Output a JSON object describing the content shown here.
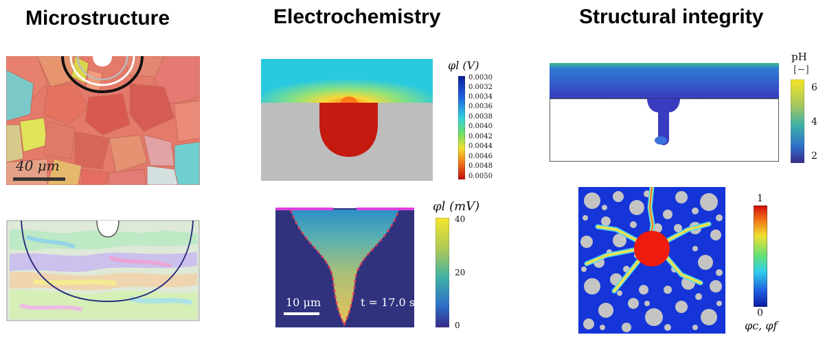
{
  "headings": {
    "col1": "Microstructure",
    "col2": "Electrochemistry",
    "col3": "Structural integrity"
  },
  "micro_top": {
    "scalebar": "40 μm"
  },
  "echem_top": {
    "colorbar_title": "φl (V)",
    "ticks": [
      "0.0030",
      "0.0032",
      "0.0034",
      "0.0036",
      "0.0038",
      "0.0040",
      "0.0042",
      "0.0044",
      "0.0046",
      "0.0048",
      "0.0050"
    ]
  },
  "echem_bottom": {
    "colorbar_title": "φl (mV)",
    "ticks": [
      "40",
      "20",
      "0"
    ],
    "scalebar": "10 μm",
    "time": "t = 17.0 s"
  },
  "struct_top": {
    "colorbar_title": "pH",
    "colorbar_unit": "[−]",
    "ticks": [
      "6",
      "4",
      "2"
    ]
  },
  "struct_bottom": {
    "ticks": [
      "1",
      "0"
    ],
    "colorbar_label": "φc, φf"
  },
  "colors": {
    "liquid_blue": "#30327e",
    "pit_red": "#c41a10",
    "metal_grey": "#bdbdbd",
    "mesh_blue": "#1535d8",
    "particle_grey": "#c4c4c4",
    "magenta": "#e040e0"
  }
}
